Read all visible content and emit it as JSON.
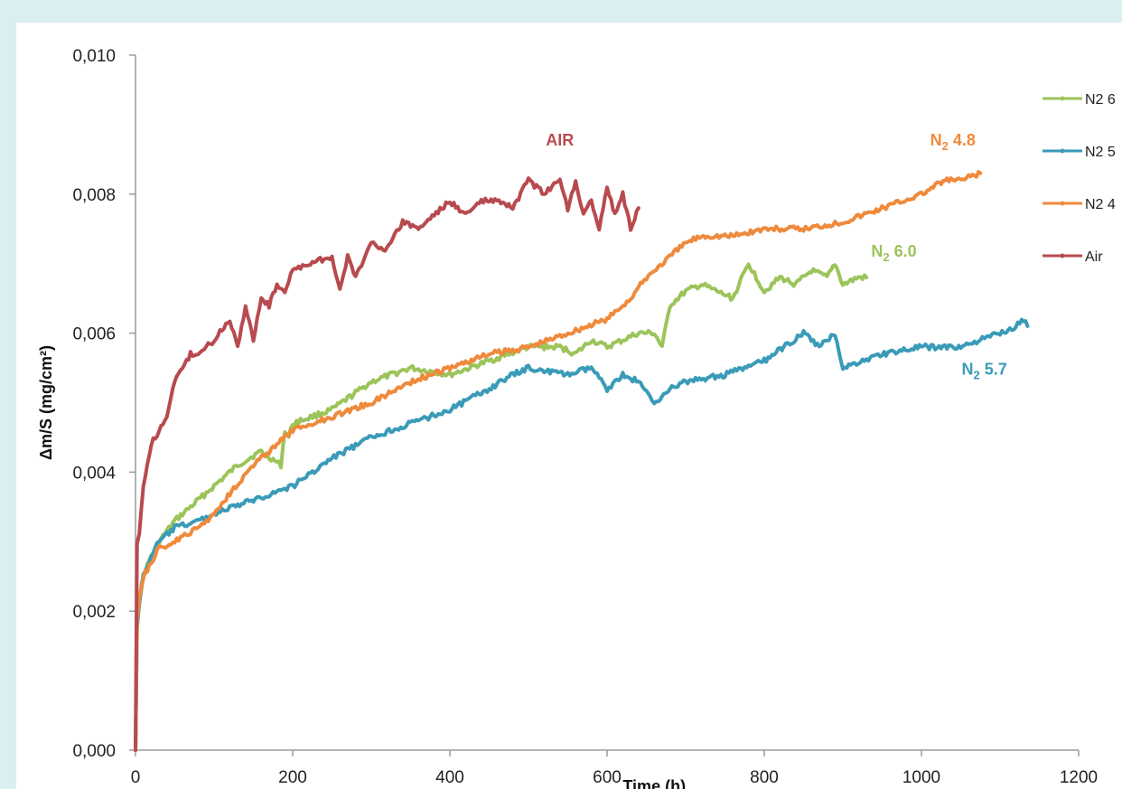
{
  "chart_data": {
    "type": "line",
    "xlabel": "Time (h)",
    "ylabel": "Δm/S (mg/cm²)",
    "xlim": [
      0,
      1200
    ],
    "ylim": [
      0,
      0.01
    ],
    "xticks": [
      0,
      200,
      400,
      600,
      800,
      1000,
      1200
    ],
    "yticks": [
      0,
      0.002,
      0.004,
      0.006,
      0.008,
      0.01
    ],
    "x_tick_labels": [
      "0",
      "200",
      "400",
      "600",
      "800",
      "1000",
      "1200"
    ],
    "y_tick_labels": [
      "0,000",
      "0,002",
      "0,004",
      "0,006",
      "0,008",
      "0,010"
    ],
    "grid": false,
    "legend_position": "right",
    "series": [
      {
        "name": "N2 6",
        "color": "#9bc45a",
        "x": [
          0,
          2,
          5,
          10,
          20,
          30,
          50,
          80,
          100,
          130,
          160,
          185,
          190,
          195,
          200,
          250,
          300,
          350,
          400,
          450,
          500,
          540,
          560,
          580,
          600,
          620,
          640,
          660,
          670,
          680,
          700,
          720,
          740,
          760,
          780,
          800,
          820,
          840,
          860,
          880,
          890,
          900,
          920,
          930
        ],
        "y": [
          0,
          0.0018,
          0.0022,
          0.0025,
          0.0028,
          0.003,
          0.0033,
          0.0036,
          0.0038,
          0.0041,
          0.0043,
          0.0041,
          0.0046,
          0.0045,
          0.0047,
          0.0049,
          0.0053,
          0.0055,
          0.0054,
          0.0056,
          0.0058,
          0.0058,
          0.0057,
          0.0059,
          0.0058,
          0.0059,
          0.006,
          0.006,
          0.0058,
          0.0064,
          0.0066,
          0.0067,
          0.0066,
          0.0065,
          0.007,
          0.0066,
          0.0068,
          0.0067,
          0.0069,
          0.0068,
          0.007,
          0.0067,
          0.0068,
          0.0068
        ]
      },
      {
        "name": "N2 5",
        "color": "#3a9bb8",
        "x": [
          0,
          2,
          5,
          10,
          20,
          30,
          50,
          80,
          100,
          150,
          200,
          250,
          300,
          350,
          400,
          450,
          480,
          500,
          550,
          580,
          600,
          620,
          640,
          660,
          680,
          700,
          750,
          800,
          850,
          870,
          890,
          900,
          950,
          1000,
          1050,
          1100,
          1120,
          1130,
          1135
        ],
        "y": [
          0,
          0.0018,
          0.0021,
          0.0025,
          0.0028,
          0.003,
          0.0032,
          0.0033,
          0.0034,
          0.0036,
          0.0038,
          0.0042,
          0.0045,
          0.0047,
          0.0049,
          0.0052,
          0.0054,
          0.0055,
          0.0054,
          0.0055,
          0.0052,
          0.0054,
          0.0053,
          0.005,
          0.0052,
          0.0053,
          0.0054,
          0.0056,
          0.006,
          0.0058,
          0.006,
          0.0055,
          0.0057,
          0.0058,
          0.0058,
          0.006,
          0.0061,
          0.0062,
          0.0061
        ]
      },
      {
        "name": "N2 4",
        "color": "#ef8a3c",
        "x": [
          0,
          2,
          5,
          10,
          20,
          30,
          50,
          80,
          100,
          120,
          150,
          180,
          200,
          250,
          300,
          350,
          400,
          450,
          500,
          550,
          600,
          630,
          650,
          680,
          700,
          720,
          740,
          760,
          800,
          850,
          900,
          950,
          1000,
          1030,
          1050,
          1075
        ],
        "y": [
          0,
          0.0019,
          0.0022,
          0.0025,
          0.0027,
          0.0029,
          0.003,
          0.0032,
          0.0034,
          0.0037,
          0.0041,
          0.0044,
          0.0046,
          0.0048,
          0.005,
          0.0053,
          0.0055,
          0.0057,
          0.0058,
          0.006,
          0.0062,
          0.0065,
          0.0068,
          0.0071,
          0.0073,
          0.0074,
          0.0074,
          0.0074,
          0.0075,
          0.0075,
          0.0076,
          0.0078,
          0.008,
          0.0082,
          0.0082,
          0.0083
        ]
      },
      {
        "name": "Air",
        "color": "#b84a4f",
        "x": [
          0,
          2,
          5,
          10,
          20,
          30,
          40,
          50,
          60,
          70,
          80,
          100,
          120,
          130,
          140,
          150,
          160,
          170,
          180,
          190,
          200,
          220,
          250,
          260,
          270,
          280,
          300,
          320,
          340,
          360,
          380,
          400,
          420,
          440,
          460,
          480,
          500,
          520,
          540,
          550,
          560,
          570,
          580,
          590,
          600,
          610,
          620,
          630,
          640
        ],
        "y": [
          0,
          0.003,
          0.0031,
          0.0038,
          0.0044,
          0.0046,
          0.0048,
          0.0053,
          0.0055,
          0.0057,
          0.0057,
          0.0059,
          0.0062,
          0.0058,
          0.0064,
          0.0059,
          0.0065,
          0.0064,
          0.0067,
          0.0066,
          0.0069,
          0.007,
          0.0071,
          0.0066,
          0.0071,
          0.0068,
          0.0073,
          0.0072,
          0.0076,
          0.0075,
          0.0077,
          0.0079,
          0.0077,
          0.0079,
          0.0079,
          0.0078,
          0.0082,
          0.008,
          0.0082,
          0.0078,
          0.0082,
          0.0077,
          0.0079,
          0.0075,
          0.0081,
          0.0077,
          0.008,
          0.0075,
          0.0078
        ]
      }
    ],
    "annotations": [
      {
        "text": "AIR",
        "sub": "",
        "rest": "",
        "color": "#b84a4f",
        "at_x": 540,
        "at_y": 0.0087
      },
      {
        "text": "N",
        "sub": "2",
        "rest": " 4.8",
        "color": "#ef8a3c",
        "at_x": 1040,
        "at_y": 0.0087
      },
      {
        "text": "N",
        "sub": "2",
        "rest": " 6.0",
        "color": "#9bc45a",
        "at_x": 965,
        "at_y": 0.0071
      },
      {
        "text": "N",
        "sub": "2",
        "rest": " 5.7",
        "color": "#3a9bb8",
        "at_x": 1080,
        "at_y": 0.0054
      }
    ]
  }
}
